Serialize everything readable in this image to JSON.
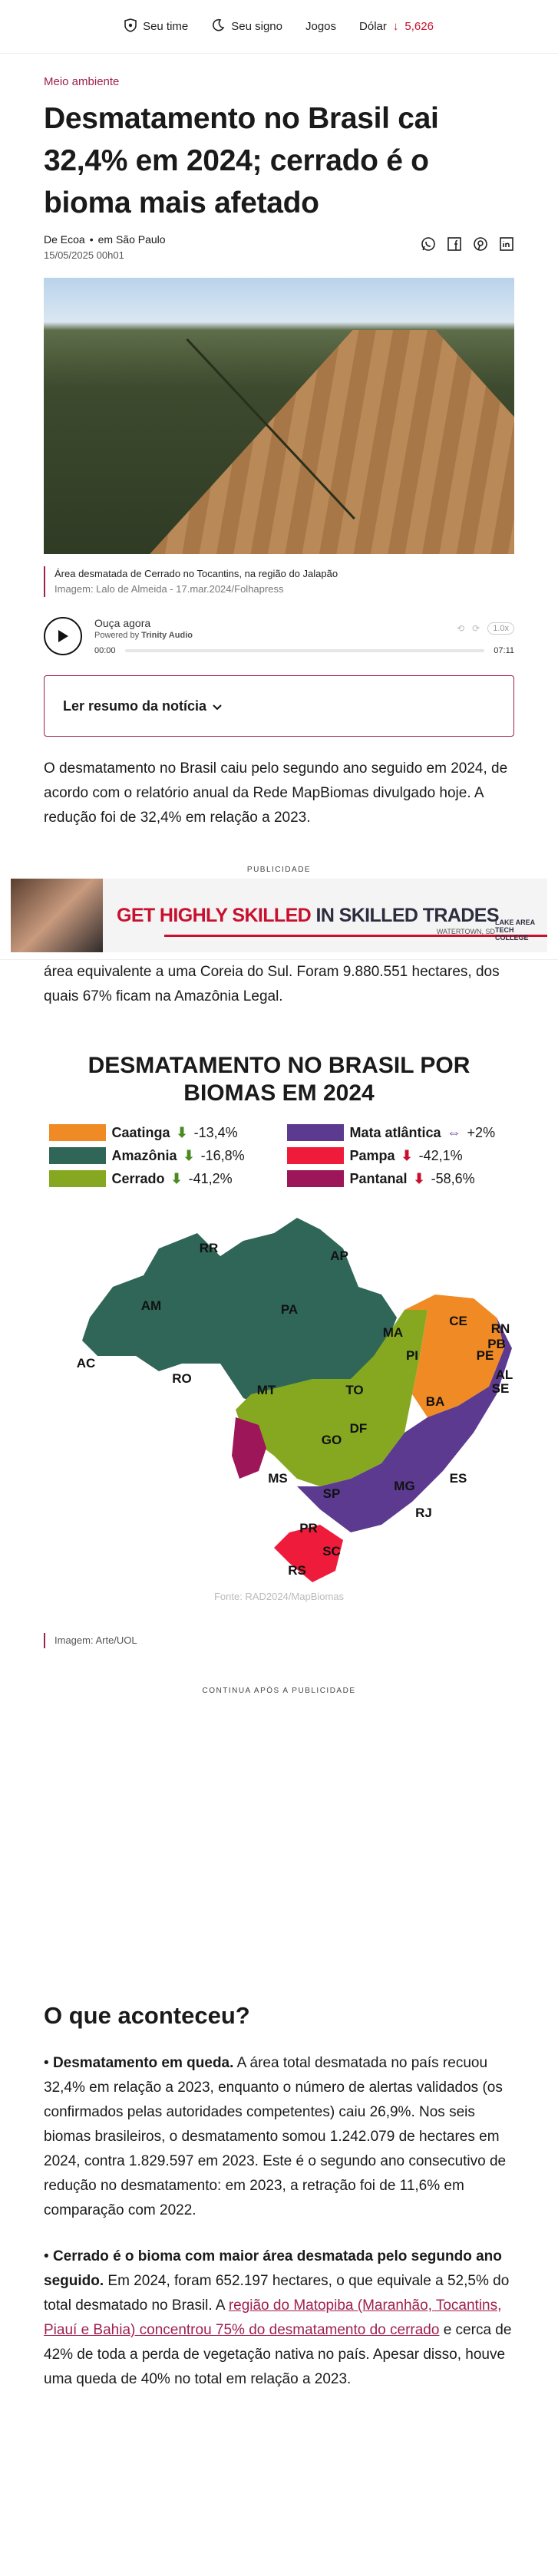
{
  "topbar": {
    "horoscope": "Seu time",
    "sign": "Seu signo",
    "games": "Jogos",
    "dollar_label": "Dólar",
    "dollar_value": "5,626",
    "dollar_arrow": "↓"
  },
  "article": {
    "section": "Meio ambiente",
    "title": "Desmatamento no Brasil cai 32,4% em 2024; cerrado é o bioma mais afetado",
    "author": "De Ecoa",
    "location": "em São Paulo",
    "date": "15/05/2025 00h01",
    "hero_caption": "Área desmatada de Cerrado no Tocantins, na região do Jalapão",
    "hero_credit": "Imagem: Lalo de Almeida - 17.mar.2024/Folhapress",
    "summary_button": "Ler resumo da notícia",
    "para1": "O desmatamento no Brasil caiu pelo segundo ano seguido em 2024, de acordo com o relatório anual da Rede MapBiomas divulgado hoje. A redução foi de 32,4% em relação a 2023.",
    "para2": "área equivalente a uma Coreia do Sul. Foram 9.880.551 hectares, dos quais 67% ficam na Amazônia Legal.",
    "image_caption": "Imagem: Arte/UOL",
    "continua": "CONTINUA APÓS A PUBLICIDADE",
    "h2": "O que aconteceu?",
    "b1_bold": "Desmatamento em queda.",
    "b1_text": " A área total desmatada no país recuou 32,4% em relação a 2023, enquanto o número de alertas validados (os confirmados pelas autoridades competentes) caiu 26,9%. Nos seis biomas brasileiros, o desmatamento somou 1.242.079 de hectares em 2024, contra 1.829.597 em 2023. Este é o segundo ano consecutivo de redução no desmatamento: em 2023, a retração foi de 11,6% em comparação com 2022.",
    "b2_bold": "Cerrado é o bioma com maior área desmatada pelo segundo ano seguido.",
    "b2_text1": " Em 2024, foram 652.197 hectares, o que equivale a 52,5% do total desmatado no Brasil. A ",
    "b2_link": "região do Matopiba (Maranhão, Tocantins, Piauí e Bahia) concentrou 75% do desmatamento do cerrado",
    "b2_text2": " e cerca de 42% de toda a perda de vegetação nativa no país. Apesar disso, houve uma queda de 40% no total em relação a 2023."
  },
  "audio": {
    "title": "Ouça agora",
    "powered_prefix": "Powered by",
    "powered_brand": "Trinity Audio",
    "current": "00:00",
    "duration": "07:11",
    "speed": "1.0x",
    "progress": 0
  },
  "ad": {
    "label": "PUBLICIDADE",
    "headline_red": "GET HIGHLY SKILLED",
    "headline_dark": " IN SKILLED TRADES",
    "location": "WATERTOWN, SD",
    "logo": "LAKE AREA TECH COLLEGE"
  },
  "chart_data": {
    "type": "map",
    "title": "DESMATAMENTO NO BRASIL POR BIOMAS EM 2024",
    "source": "Fonte: RAD2024/MapBiomas",
    "series": [
      {
        "name": "Caatinga",
        "change": "-13,4%",
        "color": "#f08a24"
      },
      {
        "name": "Mata atlântica",
        "change": "+2%",
        "color": "#5b3a8f"
      },
      {
        "name": "Amazônia",
        "change": "-16,8%",
        "color": "#2f6657"
      },
      {
        "name": "Pampa",
        "change": "-42,1%",
        "color": "#ee1c3a"
      },
      {
        "name": "Cerrado",
        "change": "-41,2%",
        "color": "#86a821"
      },
      {
        "name": "Pantanal",
        "change": "-58,6%",
        "color": "#9c1659"
      }
    ],
    "states": [
      "RR",
      "AP",
      "AM",
      "PA",
      "MA",
      "CE",
      "RN",
      "PB",
      "PE",
      "AL",
      "SE",
      "PI",
      "AC",
      "RO",
      "MT",
      "TO",
      "BA",
      "DF",
      "GO",
      "MS",
      "MG",
      "ES",
      "SP",
      "RJ",
      "PR",
      "SC",
      "RS"
    ]
  }
}
